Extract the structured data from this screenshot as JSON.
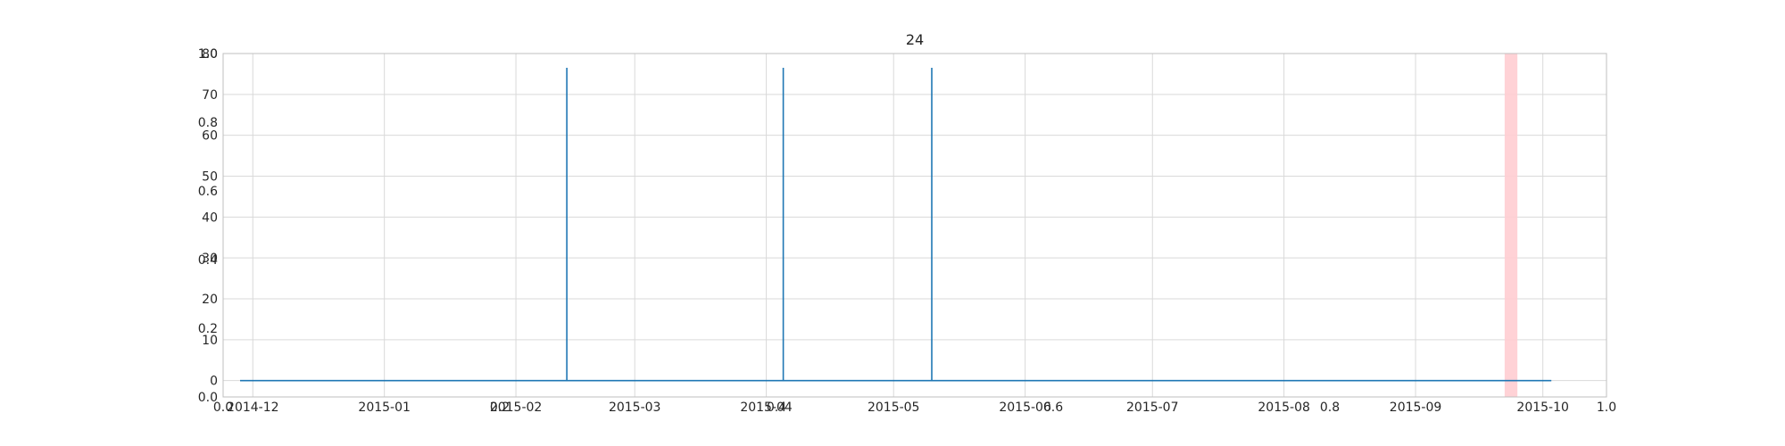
{
  "chart_data": {
    "type": "line",
    "title": "24",
    "xlabel": "",
    "ylabel": "",
    "grid": true,
    "legend": "none",
    "x_range": [
      "2014-11-24",
      "2015-10-16"
    ],
    "ylim": [
      -4,
      80
    ],
    "x_ticks": [
      "2014-12",
      "2015-01",
      "2015-02",
      "2015-03",
      "2015-04",
      "2015-05",
      "2015-06",
      "2015-07",
      "2015-08",
      "2015-09",
      "2015-10"
    ],
    "y_ticks": [
      0,
      10,
      20,
      30,
      40,
      50,
      60,
      70,
      80
    ],
    "overlay_x_ticks": [
      "0.0",
      "0.2",
      "0.4",
      "0.6",
      "0.8",
      "1.0"
    ],
    "overlay_y_ticks": [
      "0.0",
      "0.2",
      "0.4",
      "0.6",
      "0.8",
      "1.0"
    ],
    "series": [
      {
        "color": "#1f77b4",
        "points": [
          [
            "2014-11-28",
            0
          ],
          [
            "2015-02-13",
            0
          ],
          [
            "2015-02-13",
            76.5
          ],
          [
            "2015-02-13",
            0
          ],
          [
            "2015-04-05",
            0
          ],
          [
            "2015-04-05",
            76.5
          ],
          [
            "2015-04-05",
            0
          ],
          [
            "2015-05-10",
            0
          ],
          [
            "2015-05-10",
            76.5
          ],
          [
            "2015-05-10",
            0
          ],
          [
            "2015-10-03",
            0
          ]
        ]
      }
    ],
    "highlight_span": {
      "start": "2015-09-22",
      "end": "2015-09-25",
      "color": "#ffcdd2"
    }
  }
}
